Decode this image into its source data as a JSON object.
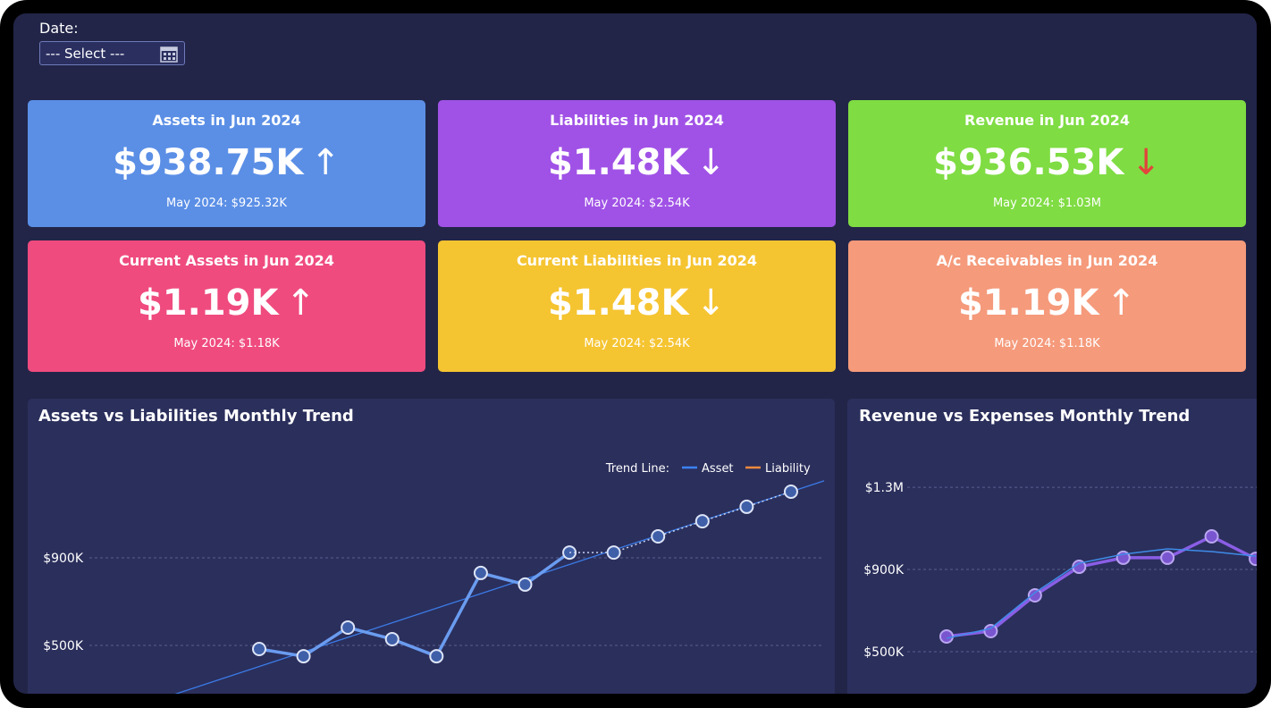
{
  "filter": {
    "label": "Date:",
    "placeholder": "--- Select ---"
  },
  "cards": [
    {
      "title": "Assets in Jun 2024",
      "value": "$938.75K",
      "arrow": "↑",
      "arrow_color": "#ffffff",
      "comparison": "May 2024: $925.32K",
      "color": "#5b8fe6"
    },
    {
      "title": "Liabilities in Jun 2024",
      "value": "$1.48K",
      "arrow": "↓",
      "arrow_color": "#ffffff",
      "comparison": "May 2024: $2.54K",
      "color": "#a052e6"
    },
    {
      "title": "Revenue in Jun 2024",
      "value": "$936.53K",
      "arrow": "↓",
      "arrow_color": "#e2453c",
      "comparison": "May 2024: $1.03M",
      "color": "#7fdc43"
    },
    {
      "title": "Current Assets in Jun 2024",
      "value": "$1.19K",
      "arrow": "↑",
      "arrow_color": "#ffffff",
      "comparison": "May 2024: $1.18K",
      "color": "#ef4b7f"
    },
    {
      "title": "Current Liabilities in Jun 2024",
      "value": "$1.48K",
      "arrow": "↓",
      "arrow_color": "#ffffff",
      "comparison": "May 2024: $2.54K",
      "color": "#f5c431"
    },
    {
      "title": "A/c Receivables in Jun 2024",
      "value": "$1.19K",
      "arrow": "↑",
      "arrow_color": "#ffffff",
      "comparison": "May 2024: $1.18K",
      "color": "#f59a7b"
    }
  ],
  "chart_data": [
    {
      "type": "line",
      "title": "Assets vs Liabilities Monthly Trend",
      "categories": [
        null,
        null,
        null,
        null,
        null,
        null,
        null,
        null,
        null,
        null,
        null,
        null,
        null
      ],
      "series": [
        {
          "color": "#6a9cf0",
          "values": [
            484000,
            451000,
            582000,
            529000,
            451000,
            831000,
            778000,
            924000,
            null,
            null,
            null,
            null,
            null
          ]
        },
        {
          "color": "#c9d3f0",
          "dashed": true,
          "values": [
            null,
            null,
            null,
            null,
            null,
            null,
            null,
            924000,
            924000,
            998000,
            1067000,
            1133000,
            1202000
          ]
        }
      ],
      "trend_lines": [
        {
          "name": "Asset",
          "color": "#3b7be6",
          "start": 404000,
          "end": 1202000
        }
      ],
      "legend": {
        "title": "Trend Line:",
        "items": [
          {
            "name": "Asset",
            "color": "#3b82f6"
          },
          {
            "name": "Liability",
            "color": "#f08a3c"
          }
        ]
      },
      "ylim": [
        284000,
        1406000
      ],
      "yticks": [
        {
          "value": 500000,
          "label": "$500K"
        },
        {
          "value": 900000,
          "label": "$900K"
        }
      ],
      "grid": true
    },
    {
      "type": "line",
      "title": "Revenue vs Expenses Monthly Trend",
      "categories": [
        null,
        null,
        null,
        null,
        null,
        null,
        null,
        null
      ],
      "series": [
        {
          "color": "#8a5ee6",
          "values": [
            574000,
            600000,
            774000,
            913000,
            957000,
            957000,
            1061000,
            952000
          ]
        },
        {
          "color": "#3f8ce8",
          "thin": true,
          "values": [
            565000,
            613000,
            787000,
            930000,
            974000,
            1000000,
            987000,
            965000
          ]
        }
      ],
      "ylim": [
        300000,
        1496000
      ],
      "yticks": [
        {
          "value": 500000,
          "label": "$500K"
        },
        {
          "value": 900000,
          "label": "$900K"
        },
        {
          "value": 1300000,
          "label": "$1.3M"
        }
      ],
      "grid": true
    }
  ]
}
